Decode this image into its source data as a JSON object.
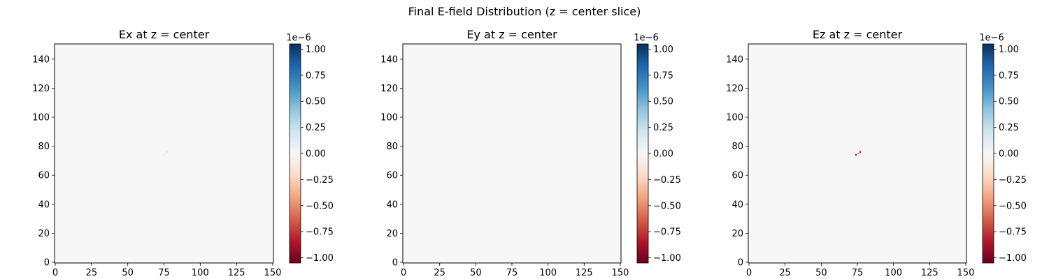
{
  "suptitle": "Final E-field Distribution (z = center slice)",
  "chart_data": [
    {
      "type": "heatmap",
      "title": "Ex at z = center",
      "xlim": [
        -0.5,
        150.5
      ],
      "ylim": [
        -0.5,
        150.5
      ],
      "xticks": [
        0,
        25,
        50,
        75,
        100,
        125,
        150
      ],
      "yticks": [
        0,
        20,
        40,
        60,
        80,
        100,
        120,
        140
      ],
      "background_value": 0,
      "colorbar": {
        "vmin": -1.05e-06,
        "vmax": 1.05e-06,
        "ticks": [
          "-1.00",
          "-0.75",
          "-0.50",
          "-0.25",
          "0.00",
          "0.25",
          "0.50",
          "0.75",
          "1.00"
        ],
        "offset_text": "1e−6",
        "colormap": "RdBu"
      },
      "points": [
        {
          "x": 75,
          "y": 74,
          "value": -1.5e-07
        },
        {
          "x": 77,
          "y": 76,
          "value": 1.8e-07
        },
        {
          "x": 76,
          "y": 75,
          "value": 6e-08
        }
      ]
    },
    {
      "type": "heatmap",
      "title": "Ey at z = center",
      "xlim": [
        -0.5,
        150.5
      ],
      "ylim": [
        -0.5,
        150.5
      ],
      "xticks": [
        0,
        25,
        50,
        75,
        100,
        125,
        150
      ],
      "yticks": [
        0,
        20,
        40,
        60,
        80,
        100,
        120,
        140
      ],
      "background_value": 0,
      "colorbar": {
        "vmin": -1.05e-06,
        "vmax": 1.05e-06,
        "ticks": [
          "-1.00",
          "-0.75",
          "-0.50",
          "-0.25",
          "0.00",
          "0.25",
          "0.50",
          "0.75",
          "1.00"
        ],
        "offset_text": "1e−6",
        "colormap": "RdBu"
      },
      "points": [
        {
          "x": 75,
          "y": 74,
          "value": 5e-08
        },
        {
          "x": 77,
          "y": 76,
          "value": 5e-08
        },
        {
          "x": 75,
          "y": 75,
          "value": 3e-08
        }
      ]
    },
    {
      "type": "heatmap",
      "title": "Ez at z = center",
      "xlim": [
        -0.5,
        150.5
      ],
      "ylim": [
        -0.5,
        150.5
      ],
      "xticks": [
        0,
        25,
        50,
        75,
        100,
        125,
        150
      ],
      "yticks": [
        0,
        20,
        40,
        60,
        80,
        100,
        120,
        140
      ],
      "background_value": 0,
      "colorbar": {
        "vmin": -1.05e-06,
        "vmax": 1.05e-06,
        "ticks": [
          "-1.00",
          "-0.75",
          "-0.50",
          "-0.25",
          "0.00",
          "0.25",
          "0.50",
          "0.75",
          "1.00"
        ],
        "offset_text": "1e−6",
        "colormap": "RdBu"
      },
      "points": [
        {
          "x": 74,
          "y": 74,
          "value": -9.5e-07
        },
        {
          "x": 77,
          "y": 76,
          "value": -9.5e-07
        },
        {
          "x": 75,
          "y": 75,
          "value": -4e-07
        },
        {
          "x": 76,
          "y": 75,
          "value": -5e-07
        }
      ]
    }
  ]
}
